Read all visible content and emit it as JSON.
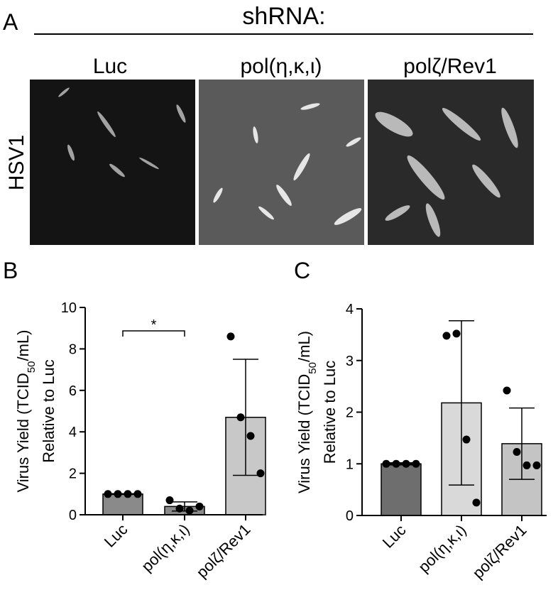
{
  "panel_a": {
    "label": "A",
    "header": "shRNA:",
    "columns": [
      "Luc",
      "pol(η,κ,ι)",
      "polζ/Rev1"
    ],
    "row_label": "HSV1"
  },
  "chart_data": [
    {
      "type": "bar",
      "panel": "B",
      "categories": [
        "Luc",
        "pol(η,κ,ι)",
        "polζ/Rev1"
      ],
      "values": [
        1.0,
        0.4,
        4.7
      ],
      "errors": [
        0.02,
        0.22,
        2.8
      ],
      "points": [
        [
          1.0,
          1.0,
          1.0,
          1.0
        ],
        [
          0.7,
          0.3,
          0.2,
          0.4
        ],
        [
          8.6,
          4.7,
          3.8,
          2.0
        ]
      ],
      "colors": [
        "#8a8a8a",
        "#8a8a8a",
        "#c8c8c8"
      ],
      "y_label_parts": [
        "Virus Yield (TCID",
        "50",
        "/mL)"
      ],
      "y_label_line2": "Relative to Luc",
      "ylim": [
        0,
        10
      ],
      "yticks": [
        0,
        2,
        4,
        6,
        8,
        10
      ],
      "significance": {
        "label": "*",
        "groups": [
          0,
          1
        ]
      }
    },
    {
      "type": "bar",
      "panel": "C",
      "categories": [
        "Luc",
        "pol(η,κ,ι)",
        "polζ/Rev1"
      ],
      "values": [
        1.0,
        2.18,
        1.39
      ],
      "errors": [
        0.02,
        1.59,
        0.69
      ],
      "points": [
        [
          1.0,
          1.0,
          1.0,
          1.0
        ],
        [
          3.48,
          3.52,
          1.47,
          0.25
        ],
        [
          2.42,
          1.23,
          0.97,
          0.97
        ]
      ],
      "colors": [
        "#6e6e6e",
        "#d9d9d9",
        "#c4c4c4"
      ],
      "y_label_parts": [
        "Virus Yield (TCID",
        "50",
        "/mL)"
      ],
      "y_label_line2": "Relative to Luc",
      "ylim": [
        0,
        4
      ],
      "yticks": [
        0,
        1,
        2,
        3,
        4
      ]
    }
  ]
}
